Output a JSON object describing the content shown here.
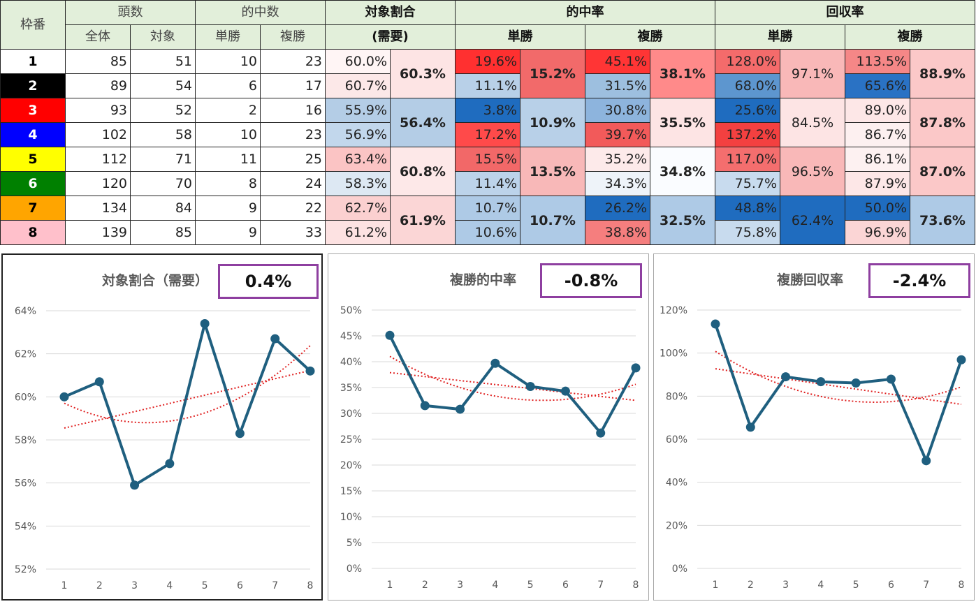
{
  "table": {
    "headers": {
      "gate": "枠番",
      "heads": "頭数",
      "heads_all": "全体",
      "heads_target": "対象",
      "hits": "的中数",
      "hits_win": "単勝",
      "hits_place": "複勝",
      "target_ratio": "対象割合",
      "demand": "(需要)",
      "hit_rate": "的中率",
      "hit_win": "単勝",
      "hit_place": "複勝",
      "recovery": "回収率",
      "rec_win": "単勝",
      "rec_place": "複勝"
    },
    "rows": [
      {
        "gate": "1",
        "all": "85",
        "target": "51",
        "win": "10",
        "place": "23",
        "ratio": "60.0%",
        "hr_win": "19.6%",
        "hr_place": "45.1%",
        "rr_win": "128.0%",
        "rr_place": "113.5%"
      },
      {
        "gate": "2",
        "all": "89",
        "target": "54",
        "win": "6",
        "place": "17",
        "ratio": "60.7%",
        "hr_win": "11.1%",
        "hr_place": "31.5%",
        "rr_win": "68.0%",
        "rr_place": "65.6%"
      },
      {
        "gate": "3",
        "all": "93",
        "target": "52",
        "win": "2",
        "place": "16",
        "ratio": "55.9%",
        "hr_win": "3.8%",
        "hr_place": "30.8%",
        "rr_win": "25.6%",
        "rr_place": "89.0%"
      },
      {
        "gate": "4",
        "all": "102",
        "target": "58",
        "win": "10",
        "place": "23",
        "ratio": "56.9%",
        "hr_win": "17.2%",
        "hr_place": "39.7%",
        "rr_win": "137.2%",
        "rr_place": "86.7%"
      },
      {
        "gate": "5",
        "all": "112",
        "target": "71",
        "win": "11",
        "place": "25",
        "ratio": "63.4%",
        "hr_win": "15.5%",
        "hr_place": "35.2%",
        "rr_win": "117.0%",
        "rr_place": "86.1%"
      },
      {
        "gate": "6",
        "all": "120",
        "target": "70",
        "win": "8",
        "place": "24",
        "ratio": "58.3%",
        "hr_win": "11.4%",
        "hr_place": "34.3%",
        "rr_win": "75.7%",
        "rr_place": "87.9%"
      },
      {
        "gate": "7",
        "all": "134",
        "target": "84",
        "win": "9",
        "place": "22",
        "ratio": "62.7%",
        "hr_win": "10.7%",
        "hr_place": "26.2%",
        "rr_win": "48.8%",
        "rr_place": "50.0%"
      },
      {
        "gate": "8",
        "all": "139",
        "target": "85",
        "win": "9",
        "place": "33",
        "ratio": "61.2%",
        "hr_win": "10.6%",
        "hr_place": "38.8%",
        "rr_win": "75.8%",
        "rr_place": "96.9%"
      }
    ],
    "groups": [
      {
        "ratio": "60.3%",
        "hr_win": "15.2%",
        "hr_place": "38.1%",
        "rr_win": "97.1%",
        "rr_place": "88.9%"
      },
      {
        "ratio": "56.4%",
        "hr_win": "10.9%",
        "hr_place": "35.5%",
        "rr_win": "84.5%",
        "rr_place": "87.8%"
      },
      {
        "ratio": "60.8%",
        "hr_win": "13.5%",
        "hr_place": "34.8%",
        "rr_win": "96.5%",
        "rr_place": "87.0%"
      },
      {
        "ratio": "61.9%",
        "hr_win": "10.7%",
        "hr_place": "32.5%",
        "rr_win": "62.4%",
        "rr_place": "73.6%"
      }
    ],
    "gate_colors": [
      "#ffffff",
      "#000000",
      "#ff0000",
      "#0000ff",
      "#ffff00",
      "#008000",
      "#ffa500",
      "#ffc0cb"
    ],
    "gate_text_colors": [
      "#000000",
      "#ffffff",
      "#ffffff",
      "#ffffff",
      "#000000",
      "#ffffff",
      "#000000",
      "#000000"
    ],
    "cell_colors": {
      "row_ratio": [
        "#fff5f5",
        "#fce8e8",
        "#b4cde6",
        "#c2d7ec",
        "#fbc4c4",
        "#dde8f3",
        "#fbd0d0",
        "#fde2e2"
      ],
      "row_hr_win": [
        "#ff3030",
        "#b8d0e8",
        "#1f6cbf",
        "#ff4a4a",
        "#f26868",
        "#bcd3ea",
        "#aecae6",
        "#aecae6"
      ],
      "row_hr_place": [
        "#ff3535",
        "#9dbfdf",
        "#8db4dd",
        "#f25a5a",
        "#fdeaea",
        "#eef3f9",
        "#1f6cbf",
        "#f57e7e"
      ],
      "row_rr_win": [
        "#f46b6b",
        "#5d96cf",
        "#1f6cbf",
        "#f34040",
        "#f46e6e",
        "#c8dbee",
        "#1f6cbf",
        "#c8dbee"
      ],
      "row_rr_place": [
        "#f58787",
        "#2a72c4",
        "#fde7e7",
        "#fdf0f0",
        "#fdf1f1",
        "#fde7e7",
        "#1f6cbf",
        "#fbd5d5"
      ],
      "group_ratio": [
        "#fde4e4",
        "#b4cde6",
        "#fde8e8",
        "#fbd6d6"
      ],
      "group_hr_win": [
        "#f26a6a",
        "#b8d0e8",
        "#f8b8b8",
        "#aecae6"
      ],
      "group_hr_place": [
        "#ff8a8a",
        "#fde4e4",
        "#fafcff",
        "#aecae6"
      ],
      "group_rr_win": [
        "#f9b8b8",
        "#fde4e4",
        "#f9b8b8",
        "#1f6cbf"
      ],
      "group_rr_place": [
        "#fbc8c8",
        "#fbc8c8",
        "#fbc8c8",
        "#aecae6"
      ]
    }
  },
  "charts_text": [
    {
      "title": "対象割合（需要）",
      "box": "0.4%"
    },
    {
      "title": "複勝的中率",
      "box": "-0.8%"
    },
    {
      "title": "複勝回収率",
      "box": "-2.4%"
    }
  ],
  "chart_data": [
    {
      "type": "line",
      "title": "対象割合（需要）",
      "annotation": "0.4%",
      "x": [
        1,
        2,
        3,
        4,
        5,
        6,
        7,
        8
      ],
      "series": [
        {
          "values": [
            60.0,
            60.7,
            55.9,
            56.9,
            63.4,
            58.3,
            62.7,
            61.2
          ]
        }
      ],
      "trendlines": [
        "linear",
        "polynomial"
      ],
      "ylim": [
        52,
        64
      ],
      "yticks": [
        "52%",
        "54%",
        "56%",
        "58%",
        "60%",
        "62%",
        "64%"
      ],
      "xticks": [
        "1",
        "2",
        "3",
        "4",
        "5",
        "6",
        "7",
        "8"
      ],
      "grid": true,
      "line_color": "#1f5f7f",
      "trend_color": "#e02020"
    },
    {
      "type": "line",
      "title": "複勝的中率",
      "annotation": "-0.8%",
      "x": [
        1,
        2,
        3,
        4,
        5,
        6,
        7,
        8
      ],
      "series": [
        {
          "values": [
            45.1,
            31.5,
            30.8,
            39.7,
            35.2,
            34.3,
            26.2,
            38.8
          ]
        }
      ],
      "trendlines": [
        "linear",
        "polynomial"
      ],
      "ylim": [
        0,
        50
      ],
      "yticks": [
        "0%",
        "5%",
        "10%",
        "15%",
        "20%",
        "25%",
        "30%",
        "35%",
        "40%",
        "45%",
        "50%"
      ],
      "xticks": [
        "1",
        "2",
        "3",
        "4",
        "5",
        "6",
        "7",
        "8"
      ],
      "grid": true,
      "line_color": "#1f5f7f",
      "trend_color": "#e02020"
    },
    {
      "type": "line",
      "title": "複勝回収率",
      "annotation": "-2.4%",
      "x": [
        1,
        2,
        3,
        4,
        5,
        6,
        7,
        8
      ],
      "series": [
        {
          "values": [
            113.5,
            65.6,
            89.0,
            86.7,
            86.1,
            87.9,
            50.0,
            96.9
          ]
        }
      ],
      "trendlines": [
        "linear",
        "polynomial"
      ],
      "ylim": [
        0,
        120
      ],
      "yticks": [
        "0%",
        "20%",
        "40%",
        "60%",
        "80%",
        "100%",
        "120%"
      ],
      "xticks": [
        "1",
        "2",
        "3",
        "4",
        "5",
        "6",
        "7",
        "8"
      ],
      "grid": true,
      "line_color": "#1f5f7f",
      "trend_color": "#e02020"
    }
  ]
}
